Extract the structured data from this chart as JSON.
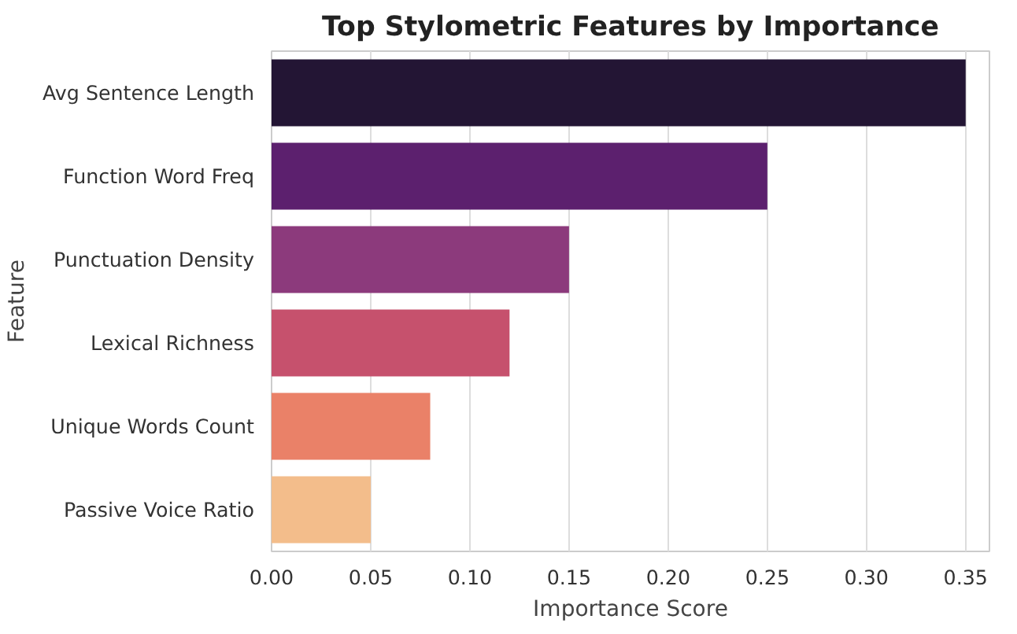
{
  "chart_data": {
    "type": "bar",
    "orientation": "horizontal",
    "title": "Top Stylometric Features by Importance",
    "xlabel": "Importance Score",
    "ylabel": "Feature",
    "categories": [
      "Avg Sentence Length",
      "Function Word Freq",
      "Punctuation Density",
      "Lexical Richness",
      "Unique Words Count",
      "Passive Voice Ratio"
    ],
    "values": [
      0.35,
      0.25,
      0.15,
      0.12,
      0.08,
      0.05
    ],
    "colors": [
      "#231534",
      "#5c206e",
      "#8c3a7c",
      "#c6516d",
      "#ea8168",
      "#f3bd8b"
    ],
    "xlim": [
      0,
      0.362
    ],
    "xticks": [
      {
        "value": 0,
        "label": "0.00"
      },
      {
        "value": 0.05,
        "label": "0.05"
      },
      {
        "value": 0.1,
        "label": "0.10"
      },
      {
        "value": 0.15,
        "label": "0.15"
      },
      {
        "value": 0.2,
        "label": "0.20"
      },
      {
        "value": 0.25,
        "label": "0.25"
      },
      {
        "value": 0.3,
        "label": "0.30"
      },
      {
        "value": 0.35,
        "label": "0.35"
      }
    ],
    "grid": "x"
  }
}
